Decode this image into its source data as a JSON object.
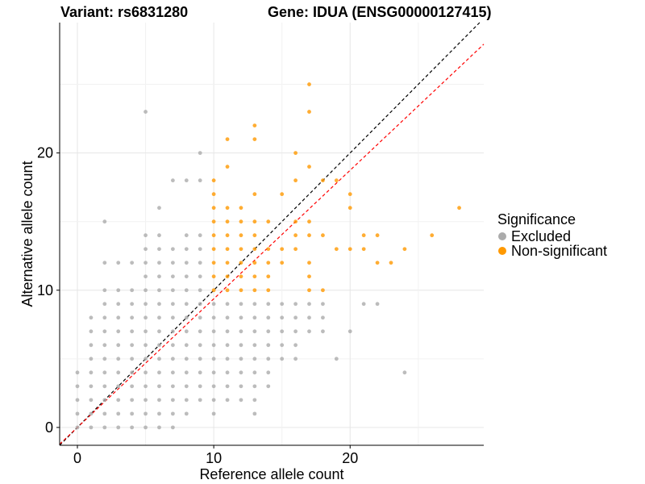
{
  "header": {
    "variant": "Variant: rs6831280",
    "gene": "Gene: IDUA (ENSG00000127415)"
  },
  "legend": {
    "title": "Significance",
    "items": [
      {
        "label": "Excluded",
        "color": "#ABABAB"
      },
      {
        "label": "Non-significant",
        "color": "#FF9900"
      }
    ]
  },
  "chart_data": {
    "type": "scatter",
    "xlabel": "Reference allele count",
    "ylabel": "Alternative allele count",
    "xlim": [
      -1.3,
      29.8
    ],
    "ylim": [
      -1.3,
      29.5
    ],
    "xticks": [
      0,
      10,
      20
    ],
    "yticks": [
      0,
      10,
      20
    ],
    "grid": true,
    "legend_position": "right",
    "reference_lines": [
      {
        "slope": 1.0,
        "intercept": 0,
        "color": "#000000",
        "style": "dashed"
      },
      {
        "slope": 0.937,
        "intercept": 0,
        "color": "#FF0000",
        "style": "dashed"
      }
    ],
    "series": [
      {
        "name": "Excluded",
        "color": "#ABABAB",
        "points": [
          [
            0,
            0
          ],
          [
            0,
            1
          ],
          [
            0,
            2
          ],
          [
            0,
            3
          ],
          [
            0,
            4
          ],
          [
            1,
            0
          ],
          [
            1,
            1
          ],
          [
            1,
            2
          ],
          [
            1,
            3
          ],
          [
            1,
            4
          ],
          [
            1,
            5
          ],
          [
            1,
            6
          ],
          [
            1,
            7
          ],
          [
            1,
            8
          ],
          [
            2,
            0
          ],
          [
            2,
            1
          ],
          [
            2,
            2
          ],
          [
            2,
            3
          ],
          [
            2,
            4
          ],
          [
            2,
            5
          ],
          [
            2,
            6
          ],
          [
            2,
            7
          ],
          [
            2,
            8
          ],
          [
            2,
            9
          ],
          [
            2,
            10
          ],
          [
            2,
            12
          ],
          [
            2,
            15
          ],
          [
            3,
            0
          ],
          [
            3,
            1
          ],
          [
            3,
            2
          ],
          [
            3,
            3
          ],
          [
            3,
            4
          ],
          [
            3,
            5
          ],
          [
            3,
            6
          ],
          [
            3,
            7
          ],
          [
            3,
            8
          ],
          [
            3,
            9
          ],
          [
            3,
            10
          ],
          [
            3,
            12
          ],
          [
            4,
            0
          ],
          [
            4,
            1
          ],
          [
            4,
            2
          ],
          [
            4,
            3
          ],
          [
            4,
            4
          ],
          [
            4,
            5
          ],
          [
            4,
            6
          ],
          [
            4,
            7
          ],
          [
            4,
            8
          ],
          [
            4,
            9
          ],
          [
            4,
            10
          ],
          [
            4,
            12
          ],
          [
            5,
            0
          ],
          [
            5,
            1
          ],
          [
            5,
            2
          ],
          [
            5,
            3
          ],
          [
            5,
            4
          ],
          [
            5,
            5
          ],
          [
            5,
            6
          ],
          [
            5,
            7
          ],
          [
            5,
            8
          ],
          [
            5,
            9
          ],
          [
            5,
            10
          ],
          [
            5,
            11
          ],
          [
            5,
            12
          ],
          [
            5,
            13
          ],
          [
            5,
            14
          ],
          [
            5,
            23
          ],
          [
            6,
            0
          ],
          [
            6,
            1
          ],
          [
            6,
            2
          ],
          [
            6,
            3
          ],
          [
            6,
            4
          ],
          [
            6,
            5
          ],
          [
            6,
            6
          ],
          [
            6,
            7
          ],
          [
            6,
            8
          ],
          [
            6,
            9
          ],
          [
            6,
            10
          ],
          [
            6,
            11
          ],
          [
            6,
            12
          ],
          [
            6,
            13
          ],
          [
            6,
            14
          ],
          [
            6,
            16
          ],
          [
            7,
            0
          ],
          [
            7,
            1
          ],
          [
            7,
            2
          ],
          [
            7,
            3
          ],
          [
            7,
            4
          ],
          [
            7,
            5
          ],
          [
            7,
            6
          ],
          [
            7,
            7
          ],
          [
            7,
            8
          ],
          [
            7,
            9
          ],
          [
            7,
            10
          ],
          [
            7,
            11
          ],
          [
            7,
            12
          ],
          [
            7,
            13
          ],
          [
            7,
            18
          ],
          [
            8,
            1
          ],
          [
            8,
            2
          ],
          [
            8,
            3
          ],
          [
            8,
            4
          ],
          [
            8,
            5
          ],
          [
            8,
            6
          ],
          [
            8,
            7
          ],
          [
            8,
            8
          ],
          [
            8,
            9
          ],
          [
            8,
            10
          ],
          [
            8,
            11
          ],
          [
            8,
            12
          ],
          [
            8,
            13
          ],
          [
            8,
            14
          ],
          [
            8,
            18
          ],
          [
            9,
            2
          ],
          [
            9,
            3
          ],
          [
            9,
            4
          ],
          [
            9,
            5
          ],
          [
            9,
            6
          ],
          [
            9,
            7
          ],
          [
            9,
            8
          ],
          [
            9,
            9
          ],
          [
            9,
            10
          ],
          [
            9,
            11
          ],
          [
            9,
            12
          ],
          [
            9,
            13
          ],
          [
            9,
            14
          ],
          [
            9,
            18
          ],
          [
            9,
            20
          ],
          [
            10,
            1
          ],
          [
            10,
            2
          ],
          [
            10,
            3
          ],
          [
            10,
            4
          ],
          [
            10,
            5
          ],
          [
            10,
            6
          ],
          [
            10,
            7
          ],
          [
            10,
            8
          ],
          [
            10,
            9
          ],
          [
            11,
            2
          ],
          [
            11,
            3
          ],
          [
            11,
            4
          ],
          [
            11,
            5
          ],
          [
            11,
            6
          ],
          [
            11,
            7
          ],
          [
            11,
            8
          ],
          [
            11,
            9
          ],
          [
            12,
            2
          ],
          [
            12,
            3
          ],
          [
            12,
            4
          ],
          [
            12,
            5
          ],
          [
            12,
            6
          ],
          [
            12,
            7
          ],
          [
            12,
            8
          ],
          [
            12,
            9
          ],
          [
            13,
            1
          ],
          [
            13,
            2
          ],
          [
            13,
            3
          ],
          [
            13,
            4
          ],
          [
            13,
            5
          ],
          [
            13,
            6
          ],
          [
            13,
            7
          ],
          [
            13,
            8
          ],
          [
            13,
            9
          ],
          [
            14,
            3
          ],
          [
            14,
            4
          ],
          [
            14,
            5
          ],
          [
            14,
            6
          ],
          [
            14,
            7
          ],
          [
            14,
            8
          ],
          [
            14,
            9
          ],
          [
            15,
            5
          ],
          [
            15,
            6
          ],
          [
            15,
            7
          ],
          [
            15,
            8
          ],
          [
            15,
            9
          ],
          [
            16,
            5
          ],
          [
            16,
            6
          ],
          [
            16,
            7
          ],
          [
            16,
            8
          ],
          [
            16,
            9
          ],
          [
            17,
            7
          ],
          [
            17,
            8
          ],
          [
            17,
            9
          ],
          [
            18,
            7
          ],
          [
            18,
            8
          ],
          [
            18,
            9
          ],
          [
            19,
            5
          ],
          [
            20,
            7
          ],
          [
            21,
            9
          ],
          [
            22,
            9
          ],
          [
            24,
            4
          ]
        ]
      },
      {
        "name": "Non-significant",
        "color": "#FF9900",
        "points": [
          [
            10,
            10
          ],
          [
            10,
            11
          ],
          [
            10,
            12
          ],
          [
            10,
            13
          ],
          [
            10,
            14
          ],
          [
            10,
            15
          ],
          [
            10,
            16
          ],
          [
            10,
            17
          ],
          [
            10,
            18
          ],
          [
            11,
            10
          ],
          [
            11,
            11
          ],
          [
            11,
            12
          ],
          [
            11,
            13
          ],
          [
            11,
            14
          ],
          [
            11,
            15
          ],
          [
            11,
            16
          ],
          [
            11,
            19
          ],
          [
            11,
            21
          ],
          [
            12,
            10
          ],
          [
            12,
            11
          ],
          [
            12,
            12
          ],
          [
            12,
            13
          ],
          [
            12,
            14
          ],
          [
            12,
            15
          ],
          [
            12,
            16
          ],
          [
            13,
            10
          ],
          [
            13,
            11
          ],
          [
            13,
            12
          ],
          [
            13,
            13
          ],
          [
            13,
            14
          ],
          [
            13,
            15
          ],
          [
            13,
            17
          ],
          [
            13,
            21
          ],
          [
            13,
            22
          ],
          [
            14,
            10
          ],
          [
            14,
            11
          ],
          [
            14,
            12
          ],
          [
            14,
            13
          ],
          [
            14,
            15
          ],
          [
            15,
            12
          ],
          [
            15,
            13
          ],
          [
            15,
            17
          ],
          [
            16,
            13
          ],
          [
            16,
            14
          ],
          [
            16,
            15
          ],
          [
            16,
            18
          ],
          [
            16,
            20
          ],
          [
            17,
            10
          ],
          [
            17,
            11
          ],
          [
            17,
            12
          ],
          [
            17,
            14
          ],
          [
            17,
            15
          ],
          [
            17,
            19
          ],
          [
            17,
            23
          ],
          [
            17,
            25
          ],
          [
            18,
            10
          ],
          [
            18,
            14
          ],
          [
            18,
            18
          ],
          [
            19,
            13
          ],
          [
            19,
            18
          ],
          [
            20,
            13
          ],
          [
            20,
            16
          ],
          [
            20,
            17
          ],
          [
            21,
            13
          ],
          [
            21,
            14
          ],
          [
            22,
            12
          ],
          [
            22,
            14
          ],
          [
            23,
            12
          ],
          [
            24,
            13
          ],
          [
            26,
            14
          ],
          [
            28,
            16
          ]
        ]
      }
    ]
  }
}
